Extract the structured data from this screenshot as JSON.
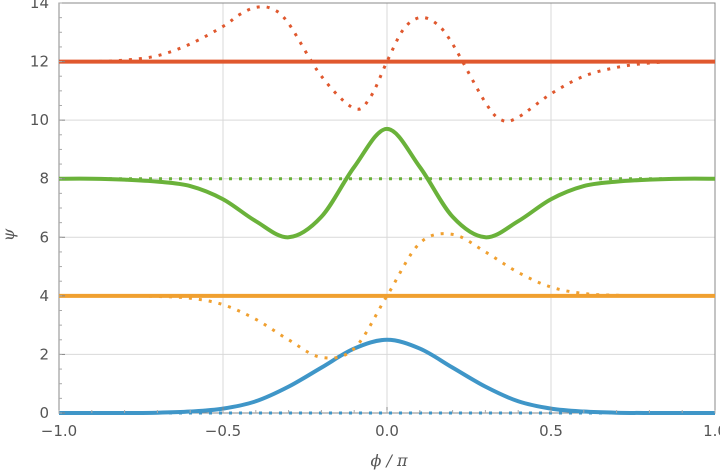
{
  "chart_data": {
    "type": "line",
    "title": "",
    "xlabel": "ϕ / π",
    "ylabel": "ψ",
    "xlim": [
      -1.0,
      1.0
    ],
    "ylim": [
      0,
      14
    ],
    "x_ticks": [
      -1.0,
      -0.5,
      0.0,
      0.5,
      1.0
    ],
    "x_tick_labels": [
      "−1.0",
      "−0.5",
      "0.0",
      "0.5",
      "1.0"
    ],
    "y_ticks": [
      0,
      2,
      4,
      6,
      8,
      10,
      12,
      14
    ],
    "y_tick_labels": [
      "0",
      "2",
      "4",
      "6",
      "8",
      "10",
      "12",
      "14"
    ],
    "grid": true,
    "legend": "none",
    "series": [
      {
        "color": "#3f96c8",
        "style": "solid",
        "x": [
          -1.0,
          -0.9,
          -0.8,
          -0.7,
          -0.6,
          -0.5,
          -0.4,
          -0.3,
          -0.2,
          -0.1,
          0.0,
          0.1,
          0.2,
          0.3,
          0.4,
          0.5,
          0.6,
          0.7,
          0.8,
          0.9,
          1.0
        ],
        "y": [
          0,
          0,
          0,
          0.01,
          0.05,
          0.15,
          0.4,
          0.9,
          1.55,
          2.2,
          2.5,
          2.2,
          1.55,
          0.9,
          0.4,
          0.15,
          0.05,
          0.01,
          0,
          0,
          0
        ]
      },
      {
        "color": "#3f96c8",
        "style": "dotted",
        "x": [
          -1.0,
          1.0
        ],
        "y": [
          0,
          0
        ]
      },
      {
        "color": "#f0a030",
        "style": "solid",
        "x": [
          -1.0,
          1.0
        ],
        "y": [
          4,
          4
        ]
      },
      {
        "color": "#f0a030",
        "style": "dotted",
        "x": [
          -1.0,
          -0.9,
          -0.8,
          -0.7,
          -0.6,
          -0.5,
          -0.4,
          -0.3,
          -0.2,
          -0.1,
          0.0,
          0.1,
          0.2,
          0.3,
          0.4,
          0.5,
          0.6,
          0.7,
          0.8,
          0.9,
          1.0
        ],
        "y": [
          4,
          4,
          4,
          3.98,
          3.92,
          3.7,
          3.2,
          2.5,
          1.9,
          2.2,
          4.0,
          5.8,
          6.1,
          5.5,
          4.8,
          4.3,
          4.08,
          4.02,
          4,
          4,
          4
        ]
      },
      {
        "color": "#6ab23a",
        "style": "solid",
        "x": [
          -1.0,
          -0.9,
          -0.8,
          -0.7,
          -0.6,
          -0.5,
          -0.4,
          -0.3,
          -0.2,
          -0.1,
          0.0,
          0.1,
          0.2,
          0.3,
          0.4,
          0.5,
          0.6,
          0.7,
          0.8,
          0.9,
          1.0
        ],
        "y": [
          8,
          8,
          7.97,
          7.9,
          7.75,
          7.3,
          6.55,
          6.0,
          6.7,
          8.4,
          9.7,
          8.4,
          6.7,
          6.0,
          6.55,
          7.3,
          7.75,
          7.9,
          7.97,
          8,
          8
        ]
      },
      {
        "color": "#6ab23a",
        "style": "dotted",
        "x": [
          -1.0,
          1.0
        ],
        "y": [
          8,
          8
        ]
      },
      {
        "color": "#e0582e",
        "style": "solid",
        "x": [
          -1.0,
          1.0
        ],
        "y": [
          12,
          12
        ]
      },
      {
        "color": "#e0582e",
        "style": "dotted",
        "x": [
          -1.0,
          -0.9,
          -0.8,
          -0.7,
          -0.6,
          -0.5,
          -0.45,
          -0.4,
          -0.35,
          -0.3,
          -0.2,
          -0.1,
          -0.05,
          0.0,
          0.05,
          0.1,
          0.15,
          0.2,
          0.3,
          0.35,
          0.4,
          0.5,
          0.6,
          0.7,
          0.8,
          0.9,
          1.0
        ],
        "y": [
          12,
          12,
          12.05,
          12.2,
          12.6,
          13.2,
          13.6,
          13.85,
          13.8,
          13.3,
          11.5,
          10.4,
          10.8,
          12.0,
          13.1,
          13.5,
          13.3,
          12.6,
          10.6,
          10.0,
          10.1,
          10.9,
          11.5,
          11.8,
          11.95,
          12,
          12
        ]
      }
    ]
  }
}
